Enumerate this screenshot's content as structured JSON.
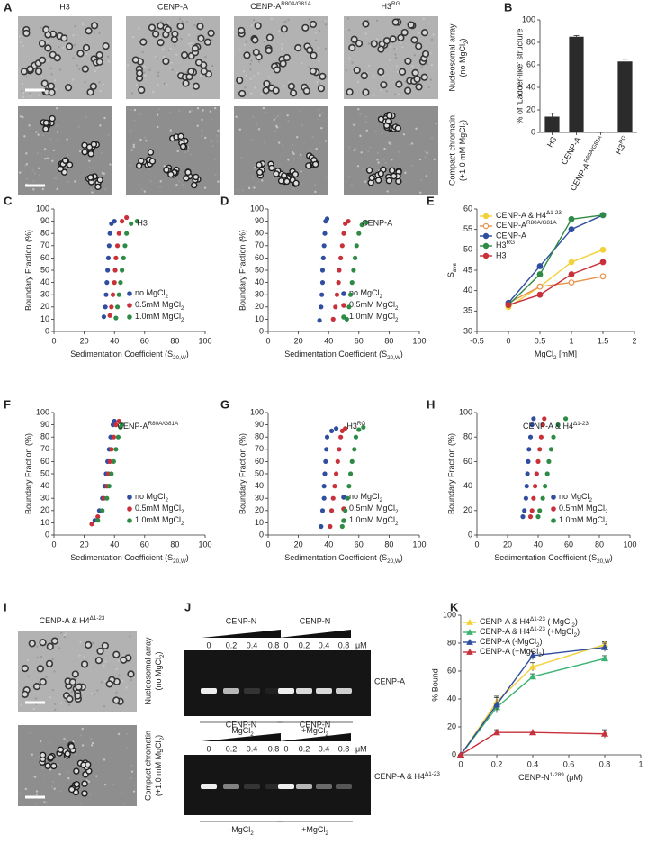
{
  "panel_a": {
    "label": "A",
    "columns": [
      "H3",
      "CENP-A",
      [
        "CENP-A",
        {
          "sup": "R80A/G81A"
        }
      ],
      [
        "H3",
        {
          "sup": "RG"
        }
      ]
    ],
    "rows": [
      [
        "Nucleosomal array",
        [
          "(no MgCl",
          {
            "sub": "2"
          },
          ")"
        ]
      ],
      [
        "Compact chromatin",
        [
          "(+1.0 mM MgCl",
          {
            "sub": "2"
          },
          ")"
        ]
      ]
    ]
  },
  "panel_i": {
    "label": "I",
    "title": [
      "CENP-A & H4",
      {
        "sup": "Δ1-23"
      }
    ],
    "rows": [
      [
        "Nucleosomal array",
        [
          "(no MgCl",
          {
            "sub": "2"
          },
          ")"
        ]
      ],
      [
        "Compact chromatin",
        [
          "(+1.0 mM MgCl",
          {
            "sub": "2"
          },
          ")"
        ]
      ]
    ]
  },
  "panel_j": {
    "label": "J",
    "rows": [
      {
        "sample": "CENP-A",
        "lanes": [
          {
            "titrant": "CENP-N",
            "concentrations": [
              0,
              0.2,
              0.4,
              0.8
            ],
            "condition": [
              "-MgCl",
              {
                "sub": "2"
              }
            ]
          },
          {
            "titrant": "CENP-N",
            "concentrations": [
              0,
              0.2,
              0.4,
              0.8
            ],
            "unit": "μM",
            "condition": [
              "+MgCl",
              {
                "sub": "2"
              }
            ]
          }
        ]
      },
      {
        "sample": [
          "CENP-A & H4",
          {
            "sup": "Δ1-23"
          }
        ],
        "lanes": [
          {
            "titrant": "CENP-N",
            "concentrations": [
              0,
              0.2,
              0.4,
              0.8
            ],
            "condition": [
              "-MgCl",
              {
                "sub": "2"
              }
            ]
          },
          {
            "titrant": "CENP-N",
            "concentrations": [
              0,
              0.2,
              0.4,
              0.8
            ],
            "unit": "μM",
            "condition": [
              "+MgCl",
              {
                "sub": "2"
              }
            ]
          }
        ]
      }
    ]
  },
  "chart_data": [
    {
      "type": "bar",
      "label": "B",
      "ylabel": "% of 'Ladder-like' structure",
      "categories": [
        "H3",
        "CENP-A",
        [
          "CENP-A",
          {
            "sup": "R80A/G81A"
          }
        ],
        [
          "H3",
          {
            "sup": "RG"
          }
        ]
      ],
      "values": [
        14,
        85,
        0,
        63
      ],
      "errors": [
        3,
        1,
        0,
        2
      ],
      "color": "#2b2b2b",
      "ylim": [
        0,
        100
      ],
      "yticks": [
        0,
        20,
        40,
        60,
        80,
        100
      ]
    },
    {
      "type": "scatter",
      "label": "C",
      "annotation": "H3",
      "ylabel": "Boundary Fraction (%)",
      "xlabel": [
        "Sedimentation Coefficient (S",
        {
          "sub": "20,W"
        },
        ")"
      ],
      "xlim": [
        0,
        100
      ],
      "xticks": [
        0,
        20,
        40,
        60,
        80,
        100
      ],
      "ylim": [
        0,
        100
      ],
      "yticks": [
        0,
        10,
        20,
        30,
        40,
        50,
        60,
        70,
        80,
        90,
        100
      ],
      "series": [
        {
          "name": [
            "no MgCl",
            {
              "sub": "2"
            }
          ],
          "color": "#2f4ea0",
          "x": [
            33,
            34,
            34.5,
            35,
            35.5,
            36,
            36.5,
            37,
            38,
            40
          ],
          "y": [
            12,
            20,
            30,
            40,
            50,
            60,
            70,
            80,
            88,
            90
          ]
        },
        {
          "name": [
            "0.5mM MgCl",
            {
              "sub": "2"
            }
          ],
          "color": "#c8303a",
          "x": [
            37,
            38,
            39,
            40,
            40.5,
            41,
            42,
            43,
            45,
            48
          ],
          "y": [
            13,
            20,
            30,
            40,
            50,
            60,
            70,
            80,
            90,
            93
          ]
        },
        {
          "name": [
            "1.0mM MgCl",
            {
              "sub": "2"
            }
          ],
          "color": "#2e8b45",
          "x": [
            41,
            42,
            43,
            44,
            45,
            46,
            47,
            48,
            51,
            55
          ],
          "y": [
            11,
            20,
            30,
            40,
            50,
            60,
            70,
            80,
            88,
            90
          ]
        }
      ]
    },
    {
      "type": "scatter",
      "label": "D",
      "annotation": "CENP-A",
      "ylabel": "Boundary Fraction (%)",
      "xlabel": [
        "Sedimentation Coefficient (S",
        {
          "sub": "20,W"
        },
        ")"
      ],
      "xlim": [
        0,
        100
      ],
      "xticks": [
        0,
        20,
        40,
        60,
        80,
        100
      ],
      "ylim": [
        0,
        100
      ],
      "yticks": [
        0,
        10,
        20,
        30,
        40,
        50,
        60,
        70,
        80,
        90,
        100
      ],
      "series": [
        {
          "name": [
            "no MgCl",
            {
              "sub": "2"
            }
          ],
          "color": "#2f4ea0",
          "x": [
            34,
            35,
            35.5,
            36,
            36,
            36.5,
            37,
            37.5,
            38,
            39
          ],
          "y": [
            9,
            20,
            30,
            40,
            50,
            60,
            70,
            80,
            90,
            92
          ]
        },
        {
          "name": [
            "0.5mM MgCl",
            {
              "sub": "2"
            }
          ],
          "color": "#c8303a",
          "x": [
            43,
            44.5,
            45.5,
            46.5,
            47,
            48,
            49,
            50,
            51,
            53
          ],
          "y": [
            10,
            20,
            30,
            40,
            50,
            60,
            70,
            80,
            88,
            90
          ]
        },
        {
          "name": [
            "1.0mM MgCl",
            {
              "sub": "2"
            }
          ],
          "color": "#2e8b45",
          "x": [
            52,
            53.5,
            54.5,
            55.5,
            56.5,
            57.5,
            58.5,
            60,
            62,
            65
          ],
          "y": [
            10,
            20,
            30,
            40,
            50,
            60,
            70,
            80,
            87,
            89
          ]
        }
      ]
    },
    {
      "type": "line",
      "label": "E",
      "ylabel": [
        "S",
        {
          "sub": "ave"
        }
      ],
      "xlabel": [
        "MgCl",
        {
          "sub": "2"
        },
        " [mM]"
      ],
      "marker": "circle",
      "x": [
        0,
        0.5,
        1,
        1.5
      ],
      "xlim": [
        -0.5,
        2
      ],
      "xticks": [
        -0.5,
        0,
        0.5,
        1,
        1.5,
        2
      ],
      "ylim": [
        30,
        60
      ],
      "yticks": [
        30,
        35,
        40,
        45,
        50,
        55,
        60
      ],
      "series": [
        {
          "name": [
            "CENP-A & H4",
            {
              "sup": "Δ1-23"
            }
          ],
          "color": "#f2d13a",
          "values": [
            36,
            41,
            47,
            50
          ]
        },
        {
          "name": [
            "CENP-A",
            {
              "sup": "R80A/G81A"
            }
          ],
          "color": "#e8924a",
          "filled": false,
          "values": [
            37,
            41,
            42,
            43.5
          ]
        },
        {
          "name": "CENP-A",
          "color": "#2f4ea0",
          "values": [
            37,
            46,
            55,
            58.5
          ]
        },
        {
          "name": [
            "H3",
            {
              "sup": "RG"
            }
          ],
          "color": "#2e8b45",
          "values": [
            36.5,
            44,
            57.5,
            58.5
          ]
        },
        {
          "name": "H3",
          "color": "#c8303a",
          "values": [
            36.5,
            39,
            44,
            47
          ]
        }
      ]
    },
    {
      "type": "scatter",
      "label": "F",
      "annotation": [
        "CENP-A",
        {
          "sup": "R80A/G81A"
        }
      ],
      "ylabel": "Boundary Fraction (%)",
      "xlabel": [
        "Sedimentation Coefficient (S",
        {
          "sub": "20,W"
        },
        ")"
      ],
      "xlim": [
        0,
        100
      ],
      "xticks": [
        0,
        20,
        40,
        60,
        80,
        100
      ],
      "ylim": [
        0,
        100
      ],
      "yticks": [
        0,
        10,
        20,
        30,
        40,
        50,
        60,
        70,
        80,
        90,
        100
      ],
      "series": [
        {
          "name": [
            "no MgCl",
            {
              "sub": "2"
            }
          ],
          "color": "#2f4ea0",
          "x": [
            27,
            30,
            32,
            33.5,
            34.5,
            35.5,
            36.5,
            37.5,
            39,
            40
          ],
          "y": [
            12,
            20,
            30,
            40,
            50,
            60,
            70,
            80,
            90,
            93
          ]
        },
        {
          "name": [
            "0.5mM MgCl",
            {
              "sub": "2"
            }
          ],
          "color": "#c8303a",
          "x": [
            25,
            29,
            33,
            35,
            36,
            37,
            38,
            39.5,
            41,
            43
          ],
          "y": [
            9,
            15,
            30,
            40,
            50,
            60,
            70,
            80,
            90,
            93
          ]
        },
        {
          "name": [
            "1.0mM MgCl",
            {
              "sub": "2"
            }
          ],
          "color": "#2e8b45",
          "x": [
            29,
            32,
            35,
            36.5,
            38,
            39.5,
            41,
            42.5,
            44,
            45
          ],
          "y": [
            12,
            20,
            30,
            40,
            50,
            60,
            70,
            80,
            88,
            90
          ]
        }
      ]
    },
    {
      "type": "scatter",
      "label": "G",
      "annotation": [
        "H3",
        {
          "sup": "RG"
        }
      ],
      "ylabel": "Boundary Fraction (%)",
      "xlabel": [
        "Sedimentation Coefficient (S",
        {
          "sub": "20,W"
        },
        ")"
      ],
      "xlim": [
        0,
        100
      ],
      "xticks": [
        0,
        20,
        40,
        60,
        80,
        100
      ],
      "ylim": [
        0,
        100
      ],
      "yticks": [
        0,
        10,
        20,
        30,
        40,
        50,
        60,
        70,
        80,
        90,
        100
      ],
      "series": [
        {
          "name": [
            "no MgCl",
            {
              "sub": "2"
            }
          ],
          "color": "#2f4ea0",
          "x": [
            35,
            36,
            37,
            37,
            37.5,
            38,
            38.5,
            39,
            42,
            45
          ],
          "y": [
            7,
            20,
            30,
            40,
            50,
            60,
            70,
            80,
            85,
            87
          ]
        },
        {
          "name": [
            "0.5mM MgCl",
            {
              "sub": "2"
            }
          ],
          "color": "#c8303a",
          "x": [
            41,
            42,
            43,
            44,
            45,
            46,
            47,
            48,
            49,
            51
          ],
          "y": [
            7,
            20,
            30,
            40,
            50,
            60,
            70,
            80,
            85,
            87
          ]
        },
        {
          "name": [
            "1.0mM MgCl",
            {
              "sub": "2"
            }
          ],
          "color": "#2e8b45",
          "x": [
            49,
            51,
            52.5,
            53.5,
            54.5,
            55.5,
            57,
            58,
            60,
            63
          ],
          "y": [
            7,
            20,
            30,
            40,
            50,
            60,
            70,
            80,
            86,
            88
          ]
        }
      ]
    },
    {
      "type": "scatter",
      "label": "H",
      "annotation": [
        "CENP-A & H4",
        {
          "sup": "Δ1-23"
        }
      ],
      "ylabel": "Boundary Fraction (%)",
      "xlabel": [
        "Sedimentation Coefficient (S",
        {
          "sub": "20,W"
        },
        ")"
      ],
      "xlim": [
        0,
        100
      ],
      "xticks": [
        0,
        20,
        40,
        60,
        80,
        100
      ],
      "ylim": [
        0,
        100
      ],
      "yticks": [
        0,
        20,
        40,
        60,
        80,
        100
      ],
      "series": [
        {
          "name": [
            "no MgCl",
            {
              "sub": "2"
            }
          ],
          "color": "#2f4ea0",
          "x": [
            30,
            31,
            32,
            32.5,
            33,
            33.5,
            34,
            35,
            36,
            37
          ],
          "y": [
            15,
            20,
            30,
            40,
            50,
            60,
            70,
            80,
            90,
            95
          ]
        },
        {
          "name": [
            "0.5mM MgCl",
            {
              "sub": "2"
            }
          ],
          "color": "#c8303a",
          "x": [
            35,
            36,
            37,
            38,
            39,
            40,
            41,
            42,
            43,
            44
          ],
          "y": [
            15,
            20,
            30,
            40,
            50,
            60,
            70,
            80,
            90,
            95
          ]
        },
        {
          "name": [
            "1.0mM MgCl",
            {
              "sub": "2"
            }
          ],
          "color": "#2e8b45",
          "x": [
            40,
            41,
            43,
            44.5,
            46,
            47,
            48.5,
            50,
            53,
            58
          ],
          "y": [
            15,
            20,
            30,
            40,
            50,
            60,
            70,
            80,
            90,
            95
          ]
        }
      ]
    },
    {
      "type": "line",
      "label": "K",
      "ylabel": "% Bound",
      "xlabel": [
        "CENP-N",
        {
          "sup": "1-289"
        },
        " (μM)"
      ],
      "marker": "triangle",
      "x": [
        0,
        0.2,
        0.4,
        0.8
      ],
      "xlim": [
        0,
        1
      ],
      "xticks": [
        0,
        0.2,
        0.4,
        0.6,
        0.8,
        1
      ],
      "ylim": [
        0,
        100
      ],
      "yticks": [
        0,
        20,
        40,
        60,
        80,
        100
      ],
      "series": [
        {
          "name": [
            "CENP-A & H4",
            {
              "sup": "Δ1-23"
            },
            " (-MgCl",
            {
              "sub": "2"
            },
            ")"
          ],
          "color": "#f2d13a",
          "values": [
            0,
            38,
            63,
            79
          ],
          "errors": [
            0,
            3,
            3,
            2
          ]
        },
        {
          "name": [
            "CENP-A & H4",
            {
              "sup": "Δ1-23"
            },
            " (+MgCl",
            {
              "sub": "2"
            },
            ")"
          ],
          "color": "#3cb371",
          "values": [
            0,
            34,
            56,
            69
          ],
          "errors": [
            0,
            2,
            2,
            2
          ]
        },
        {
          "name": [
            "CENP-A (-MgCl",
            {
              "sub": "2"
            },
            ")"
          ],
          "color": "#2f4ea0",
          "values": [
            0,
            36,
            71,
            77
          ],
          "errors": [
            0,
            6,
            3,
            3
          ]
        },
        {
          "name": [
            "CENP-A (+MgCl",
            {
              "sub": "2"
            },
            ")"
          ],
          "color": "#c8303a",
          "values": [
            0,
            16,
            16,
            15
          ],
          "errors": [
            0,
            2,
            1,
            3
          ]
        }
      ]
    }
  ]
}
